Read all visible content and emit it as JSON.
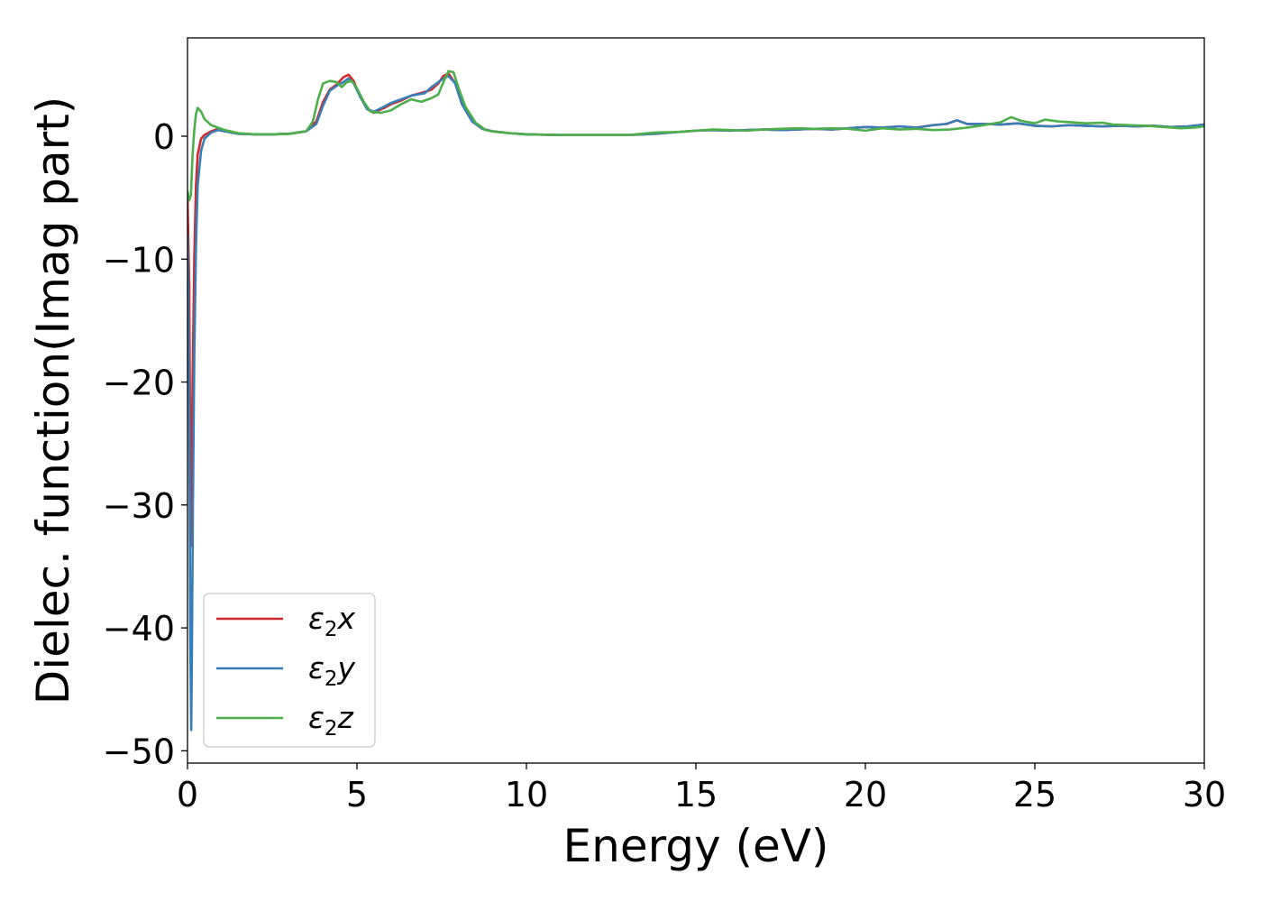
{
  "chart_data": {
    "type": "line",
    "title": "",
    "xlabel": "Energy (eV)",
    "ylabel": "Dielec. function(Imag part)",
    "xlim": [
      0,
      30
    ],
    "ylim": [
      -51,
      8
    ],
    "xticks": [
      0,
      5,
      10,
      15,
      20,
      25,
      30
    ],
    "yticks": [
      -50,
      -40,
      -30,
      -20,
      -10,
      0
    ],
    "xtick_labels": [
      "0",
      "5",
      "10",
      "15",
      "20",
      "25",
      "30"
    ],
    "ytick_labels": [
      "−50",
      "−40",
      "−30",
      "−20",
      "−10",
      "0"
    ],
    "grid": false,
    "legend": {
      "placement": "lower-left",
      "entries": [
        {
          "base": "ε",
          "sub": "2",
          "suffix": "x"
        },
        {
          "base": "ε",
          "sub": "2",
          "suffix": "y"
        },
        {
          "base": "ε",
          "sub": "2",
          "suffix": "z"
        }
      ]
    },
    "series": [
      {
        "name": "ε2x",
        "color": "#d62728",
        "points": [
          [
            0.0,
            -5
          ],
          [
            0.05,
            -12
          ],
          [
            0.08,
            -25
          ],
          [
            0.1,
            -33.3
          ],
          [
            0.12,
            -28
          ],
          [
            0.15,
            -20
          ],
          [
            0.2,
            -10
          ],
          [
            0.25,
            -4
          ],
          [
            0.3,
            -1.5
          ],
          [
            0.4,
            -0.2
          ],
          [
            0.5,
            0.1
          ],
          [
            0.7,
            0.4
          ],
          [
            0.9,
            0.6
          ],
          [
            1.1,
            0.4
          ],
          [
            1.5,
            0.2
          ],
          [
            2.0,
            0.15
          ],
          [
            2.5,
            0.15
          ],
          [
            3.0,
            0.2
          ],
          [
            3.5,
            0.4
          ],
          [
            3.8,
            1.2
          ],
          [
            4.0,
            2.8
          ],
          [
            4.2,
            3.8
          ],
          [
            4.4,
            4.2
          ],
          [
            4.6,
            4.8
          ],
          [
            4.75,
            5.0
          ],
          [
            4.9,
            4.5
          ],
          [
            5.1,
            3.2
          ],
          [
            5.3,
            2.2
          ],
          [
            5.5,
            1.9
          ],
          [
            5.8,
            2.3
          ],
          [
            6.0,
            2.6
          ],
          [
            6.3,
            2.9
          ],
          [
            6.6,
            3.3
          ],
          [
            7.0,
            3.6
          ],
          [
            7.2,
            3.8
          ],
          [
            7.4,
            4.3
          ],
          [
            7.55,
            4.9
          ],
          [
            7.7,
            5.1
          ],
          [
            7.9,
            4.3
          ],
          [
            8.1,
            2.6
          ],
          [
            8.4,
            1.2
          ],
          [
            8.7,
            0.6
          ],
          [
            9.0,
            0.4
          ],
          [
            9.5,
            0.25
          ],
          [
            10.0,
            0.15
          ],
          [
            11.0,
            0.1
          ],
          [
            12.0,
            0.1
          ],
          [
            13.0,
            0.1
          ],
          [
            13.8,
            0.2
          ],
          [
            14.5,
            0.35
          ],
          [
            15.0,
            0.45
          ],
          [
            15.5,
            0.5
          ],
          [
            16.0,
            0.45
          ],
          [
            16.5,
            0.5
          ],
          [
            17.0,
            0.55
          ],
          [
            17.5,
            0.5
          ],
          [
            18.0,
            0.55
          ],
          [
            18.5,
            0.6
          ],
          [
            19.0,
            0.55
          ],
          [
            19.5,
            0.65
          ],
          [
            20.0,
            0.75
          ],
          [
            20.5,
            0.7
          ],
          [
            21.0,
            0.8
          ],
          [
            21.5,
            0.7
          ],
          [
            22.0,
            0.9
          ],
          [
            22.4,
            1.0
          ],
          [
            22.7,
            1.3
          ],
          [
            23.0,
            1.0
          ],
          [
            23.5,
            1.0
          ],
          [
            24.0,
            0.95
          ],
          [
            24.5,
            1.05
          ],
          [
            25.0,
            0.85
          ],
          [
            25.5,
            0.8
          ],
          [
            26.0,
            0.9
          ],
          [
            26.5,
            0.85
          ],
          [
            27.0,
            0.8
          ],
          [
            27.5,
            0.85
          ],
          [
            28.0,
            0.8
          ],
          [
            28.5,
            0.85
          ],
          [
            29.0,
            0.75
          ],
          [
            29.5,
            0.8
          ],
          [
            30.0,
            0.95
          ]
        ]
      },
      {
        "name": "ε2y",
        "color": "#377eb8",
        "points": [
          [
            0.0,
            -8
          ],
          [
            0.05,
            -20
          ],
          [
            0.08,
            -40
          ],
          [
            0.11,
            -48.3
          ],
          [
            0.13,
            -42
          ],
          [
            0.16,
            -30
          ],
          [
            0.2,
            -18
          ],
          [
            0.25,
            -9
          ],
          [
            0.3,
            -4
          ],
          [
            0.4,
            -1.2
          ],
          [
            0.5,
            -0.2
          ],
          [
            0.7,
            0.3
          ],
          [
            0.9,
            0.5
          ],
          [
            1.1,
            0.4
          ],
          [
            1.5,
            0.2
          ],
          [
            2.0,
            0.15
          ],
          [
            2.5,
            0.15
          ],
          [
            3.0,
            0.2
          ],
          [
            3.5,
            0.4
          ],
          [
            3.8,
            1.0
          ],
          [
            4.0,
            2.5
          ],
          [
            4.2,
            3.7
          ],
          [
            4.4,
            4.1
          ],
          [
            4.6,
            4.4
          ],
          [
            4.75,
            4.7
          ],
          [
            4.9,
            4.3
          ],
          [
            5.1,
            3.2
          ],
          [
            5.3,
            2.2
          ],
          [
            5.5,
            2.0
          ],
          [
            5.8,
            2.4
          ],
          [
            6.0,
            2.7
          ],
          [
            6.3,
            3.0
          ],
          [
            6.6,
            3.3
          ],
          [
            7.0,
            3.5
          ],
          [
            7.2,
            4.0
          ],
          [
            7.4,
            4.4
          ],
          [
            7.55,
            4.7
          ],
          [
            7.7,
            4.9
          ],
          [
            7.9,
            4.3
          ],
          [
            8.1,
            2.6
          ],
          [
            8.4,
            1.2
          ],
          [
            8.7,
            0.6
          ],
          [
            9.0,
            0.4
          ],
          [
            9.5,
            0.25
          ],
          [
            10.0,
            0.15
          ],
          [
            11.0,
            0.1
          ],
          [
            12.0,
            0.1
          ],
          [
            13.0,
            0.1
          ],
          [
            13.8,
            0.2
          ],
          [
            14.5,
            0.35
          ],
          [
            15.0,
            0.45
          ],
          [
            15.5,
            0.5
          ],
          [
            16.0,
            0.45
          ],
          [
            16.5,
            0.5
          ],
          [
            17.0,
            0.55
          ],
          [
            17.5,
            0.5
          ],
          [
            18.0,
            0.55
          ],
          [
            18.5,
            0.6
          ],
          [
            19.0,
            0.55
          ],
          [
            19.5,
            0.65
          ],
          [
            20.0,
            0.75
          ],
          [
            20.5,
            0.7
          ],
          [
            21.0,
            0.8
          ],
          [
            21.5,
            0.7
          ],
          [
            22.0,
            0.9
          ],
          [
            22.4,
            1.0
          ],
          [
            22.7,
            1.3
          ],
          [
            23.0,
            1.0
          ],
          [
            23.5,
            1.0
          ],
          [
            24.0,
            0.95
          ],
          [
            24.5,
            1.05
          ],
          [
            25.0,
            0.85
          ],
          [
            25.5,
            0.8
          ],
          [
            26.0,
            0.9
          ],
          [
            26.5,
            0.85
          ],
          [
            27.0,
            0.8
          ],
          [
            27.5,
            0.85
          ],
          [
            28.0,
            0.8
          ],
          [
            28.5,
            0.85
          ],
          [
            29.0,
            0.75
          ],
          [
            29.5,
            0.8
          ],
          [
            30.0,
            0.95
          ]
        ]
      },
      {
        "name": "ε2z",
        "color": "#4daf4a",
        "points": [
          [
            0.0,
            -4.5
          ],
          [
            0.05,
            -5.2
          ],
          [
            0.1,
            -4.8
          ],
          [
            0.15,
            -1.5
          ],
          [
            0.2,
            0.5
          ],
          [
            0.25,
            1.8
          ],
          [
            0.3,
            2.3
          ],
          [
            0.4,
            2.0
          ],
          [
            0.5,
            1.4
          ],
          [
            0.7,
            0.9
          ],
          [
            0.9,
            0.7
          ],
          [
            1.1,
            0.5
          ],
          [
            1.5,
            0.25
          ],
          [
            2.0,
            0.15
          ],
          [
            2.5,
            0.15
          ],
          [
            3.0,
            0.2
          ],
          [
            3.5,
            0.4
          ],
          [
            3.7,
            1.2
          ],
          [
            3.85,
            3.0
          ],
          [
            4.0,
            4.3
          ],
          [
            4.2,
            4.5
          ],
          [
            4.4,
            4.4
          ],
          [
            4.55,
            4.0
          ],
          [
            4.7,
            4.4
          ],
          [
            4.85,
            4.5
          ],
          [
            5.0,
            3.9
          ],
          [
            5.2,
            2.8
          ],
          [
            5.4,
            2.0
          ],
          [
            5.7,
            1.9
          ],
          [
            6.0,
            2.1
          ],
          [
            6.3,
            2.6
          ],
          [
            6.6,
            3.0
          ],
          [
            6.9,
            2.8
          ],
          [
            7.2,
            3.1
          ],
          [
            7.4,
            3.4
          ],
          [
            7.55,
            4.4
          ],
          [
            7.7,
            5.3
          ],
          [
            7.85,
            5.2
          ],
          [
            8.0,
            3.9
          ],
          [
            8.2,
            2.4
          ],
          [
            8.5,
            1.1
          ],
          [
            8.8,
            0.5
          ],
          [
            9.1,
            0.35
          ],
          [
            9.5,
            0.25
          ],
          [
            10.0,
            0.15
          ],
          [
            11.0,
            0.1
          ],
          [
            12.0,
            0.1
          ],
          [
            13.0,
            0.1
          ],
          [
            13.8,
            0.3
          ],
          [
            14.5,
            0.35
          ],
          [
            15.0,
            0.45
          ],
          [
            15.5,
            0.55
          ],
          [
            16.0,
            0.5
          ],
          [
            16.5,
            0.45
          ],
          [
            17.0,
            0.55
          ],
          [
            17.5,
            0.6
          ],
          [
            18.0,
            0.65
          ],
          [
            18.5,
            0.6
          ],
          [
            19.0,
            0.65
          ],
          [
            19.5,
            0.6
          ],
          [
            20.0,
            0.45
          ],
          [
            20.5,
            0.65
          ],
          [
            21.0,
            0.55
          ],
          [
            21.5,
            0.6
          ],
          [
            22.0,
            0.5
          ],
          [
            22.5,
            0.55
          ],
          [
            23.0,
            0.7
          ],
          [
            23.5,
            0.9
          ],
          [
            24.0,
            1.15
          ],
          [
            24.3,
            1.55
          ],
          [
            24.6,
            1.25
          ],
          [
            25.0,
            1.05
          ],
          [
            25.3,
            1.35
          ],
          [
            25.7,
            1.2
          ],
          [
            26.0,
            1.15
          ],
          [
            26.5,
            1.05
          ],
          [
            27.0,
            1.1
          ],
          [
            27.3,
            0.95
          ],
          [
            27.8,
            0.9
          ],
          [
            28.3,
            0.85
          ],
          [
            28.8,
            0.75
          ],
          [
            29.3,
            0.65
          ],
          [
            29.7,
            0.7
          ],
          [
            30.0,
            0.8
          ]
        ]
      }
    ]
  }
}
